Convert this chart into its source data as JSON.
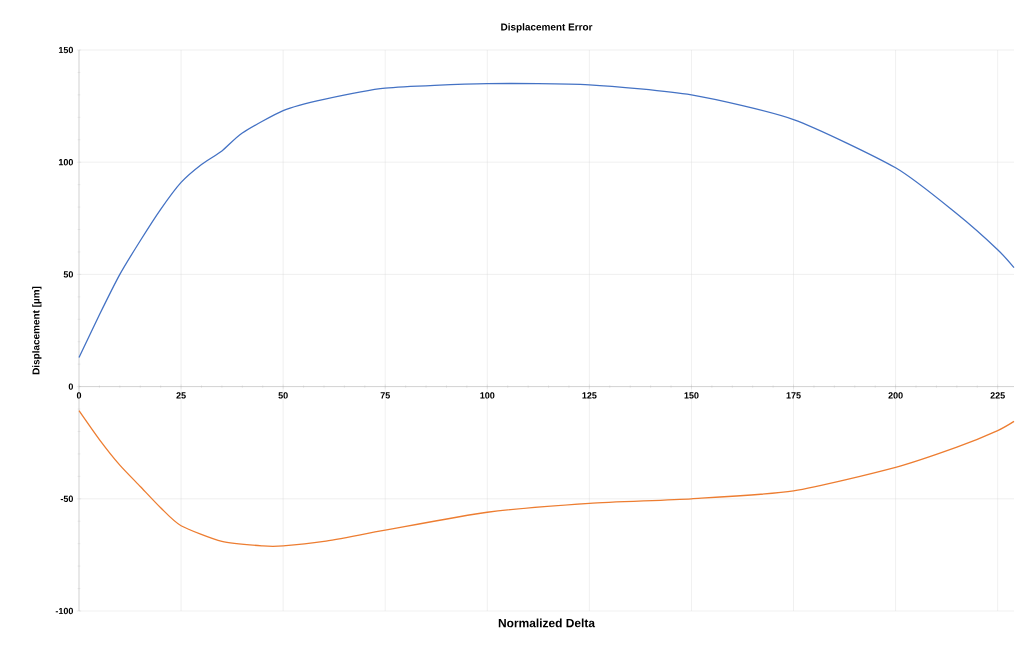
{
  "chart_data": {
    "type": "line",
    "title": "Displacement Error",
    "xlabel": "Normalized Delta",
    "ylabel": "Displacement [µm]",
    "xlim": [
      0,
      229
    ],
    "ylim": [
      -100,
      150
    ],
    "xticks": [
      0,
      25,
      50,
      75,
      100,
      125,
      150,
      175,
      200,
      225
    ],
    "yticks": [
      -100,
      -50,
      0,
      50,
      100,
      150
    ],
    "grid": true,
    "marker": "none",
    "line_style": "solid",
    "series": [
      {
        "color": "#4472c4",
        "x": [
          0,
          5,
          10,
          15,
          20,
          25,
          30,
          35,
          40,
          50,
          60,
          75,
          100,
          125,
          150,
          175,
          200,
          215,
          225,
          229
        ],
        "values": [
          13,
          32,
          50,
          65,
          79,
          91,
          99,
          105,
          113,
          123,
          128,
          133,
          135,
          134.5,
          130,
          119,
          97.5,
          77,
          61,
          53
        ]
      },
      {
        "color": "#ed7d31",
        "x": [
          0,
          5,
          10,
          15,
          20,
          25,
          35,
          45,
          50,
          60,
          75,
          100,
          125,
          150,
          175,
          200,
          215,
          225,
          229
        ],
        "values": [
          -10.7,
          -23.6,
          -35,
          -44.5,
          -54,
          -62,
          -69,
          -71,
          -71,
          -69,
          -64,
          -56,
          -52,
          -50,
          -46.5,
          -36,
          -27,
          -19.6,
          -15.5
        ]
      }
    ]
  }
}
